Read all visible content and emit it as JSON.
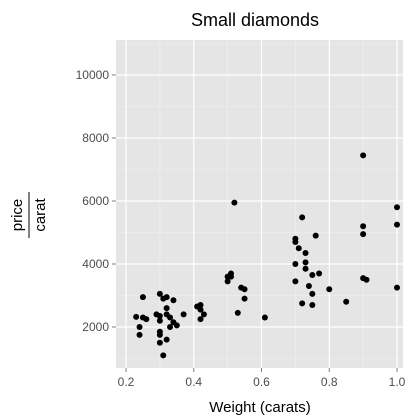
{
  "chart_data": {
    "type": "scatter",
    "title": "Small diamonds",
    "xlabel": "Weight (carats)",
    "ylabel_numerator": "price",
    "ylabel_denominator": "carat",
    "xlim": [
      0.2,
      1.0
    ],
    "ylim": [
      1000,
      11000
    ],
    "x_ticks": [
      0.2,
      0.4,
      0.6,
      0.8,
      1.0
    ],
    "x_tick_labels": [
      "0.2",
      "0.4",
      "0.6",
      "0.8",
      "1.0"
    ],
    "y_ticks": [
      2000,
      4000,
      6000,
      8000,
      10000
    ],
    "y_tick_labels": [
      "2000",
      "4000",
      "6000",
      "8000",
      "10000"
    ],
    "grid": true,
    "colors": {
      "panel": "#e5e5e5",
      "grid_major": "#ffffff",
      "grid_minor": "#f2f2f2",
      "point": "#000000"
    },
    "points": [
      {
        "x": 0.23,
        "y": 2320
      },
      {
        "x": 0.24,
        "y": 2000
      },
      {
        "x": 0.24,
        "y": 1750
      },
      {
        "x": 0.25,
        "y": 2950
      },
      {
        "x": 0.25,
        "y": 2300
      },
      {
        "x": 0.26,
        "y": 2250
      },
      {
        "x": 0.29,
        "y": 2400
      },
      {
        "x": 0.3,
        "y": 3050
      },
      {
        "x": 0.3,
        "y": 2350
      },
      {
        "x": 0.3,
        "y": 2200
      },
      {
        "x": 0.3,
        "y": 1850
      },
      {
        "x": 0.3,
        "y": 1750
      },
      {
        "x": 0.3,
        "y": 1500
      },
      {
        "x": 0.31,
        "y": 2900
      },
      {
        "x": 0.31,
        "y": 1100
      },
      {
        "x": 0.32,
        "y": 2950
      },
      {
        "x": 0.32,
        "y": 2600
      },
      {
        "x": 0.32,
        "y": 2400
      },
      {
        "x": 0.32,
        "y": 1600
      },
      {
        "x": 0.33,
        "y": 2300
      },
      {
        "x": 0.33,
        "y": 2000
      },
      {
        "x": 0.34,
        "y": 2850
      },
      {
        "x": 0.34,
        "y": 2150
      },
      {
        "x": 0.35,
        "y": 2050
      },
      {
        "x": 0.37,
        "y": 2400
      },
      {
        "x": 0.41,
        "y": 2650
      },
      {
        "x": 0.42,
        "y": 2700
      },
      {
        "x": 0.42,
        "y": 2550
      },
      {
        "x": 0.42,
        "y": 2250
      },
      {
        "x": 0.43,
        "y": 2400
      },
      {
        "x": 0.5,
        "y": 3600
      },
      {
        "x": 0.5,
        "y": 3450
      },
      {
        "x": 0.51,
        "y": 3700
      },
      {
        "x": 0.51,
        "y": 3600
      },
      {
        "x": 0.52,
        "y": 5950
      },
      {
        "x": 0.53,
        "y": 2450
      },
      {
        "x": 0.54,
        "y": 3250
      },
      {
        "x": 0.55,
        "y": 3200
      },
      {
        "x": 0.55,
        "y": 2900
      },
      {
        "x": 0.61,
        "y": 2300
      },
      {
        "x": 0.7,
        "y": 4800
      },
      {
        "x": 0.7,
        "y": 4700
      },
      {
        "x": 0.7,
        "y": 4000
      },
      {
        "x": 0.7,
        "y": 3450
      },
      {
        "x": 0.71,
        "y": 4500
      },
      {
        "x": 0.72,
        "y": 5480
      },
      {
        "x": 0.72,
        "y": 2750
      },
      {
        "x": 0.73,
        "y": 4350
      },
      {
        "x": 0.73,
        "y": 4050
      },
      {
        "x": 0.73,
        "y": 3850
      },
      {
        "x": 0.74,
        "y": 3300
      },
      {
        "x": 0.75,
        "y": 3650
      },
      {
        "x": 0.75,
        "y": 3050
      },
      {
        "x": 0.75,
        "y": 2700
      },
      {
        "x": 0.76,
        "y": 4900
      },
      {
        "x": 0.77,
        "y": 3700
      },
      {
        "x": 0.8,
        "y": 3200
      },
      {
        "x": 0.85,
        "y": 2800
      },
      {
        "x": 0.9,
        "y": 7450
      },
      {
        "x": 0.9,
        "y": 5200
      },
      {
        "x": 0.9,
        "y": 4950
      },
      {
        "x": 0.9,
        "y": 3550
      },
      {
        "x": 0.91,
        "y": 3500
      },
      {
        "x": 1.0,
        "y": 5800
      },
      {
        "x": 1.0,
        "y": 5250
      },
      {
        "x": 1.0,
        "y": 3250
      }
    ]
  }
}
